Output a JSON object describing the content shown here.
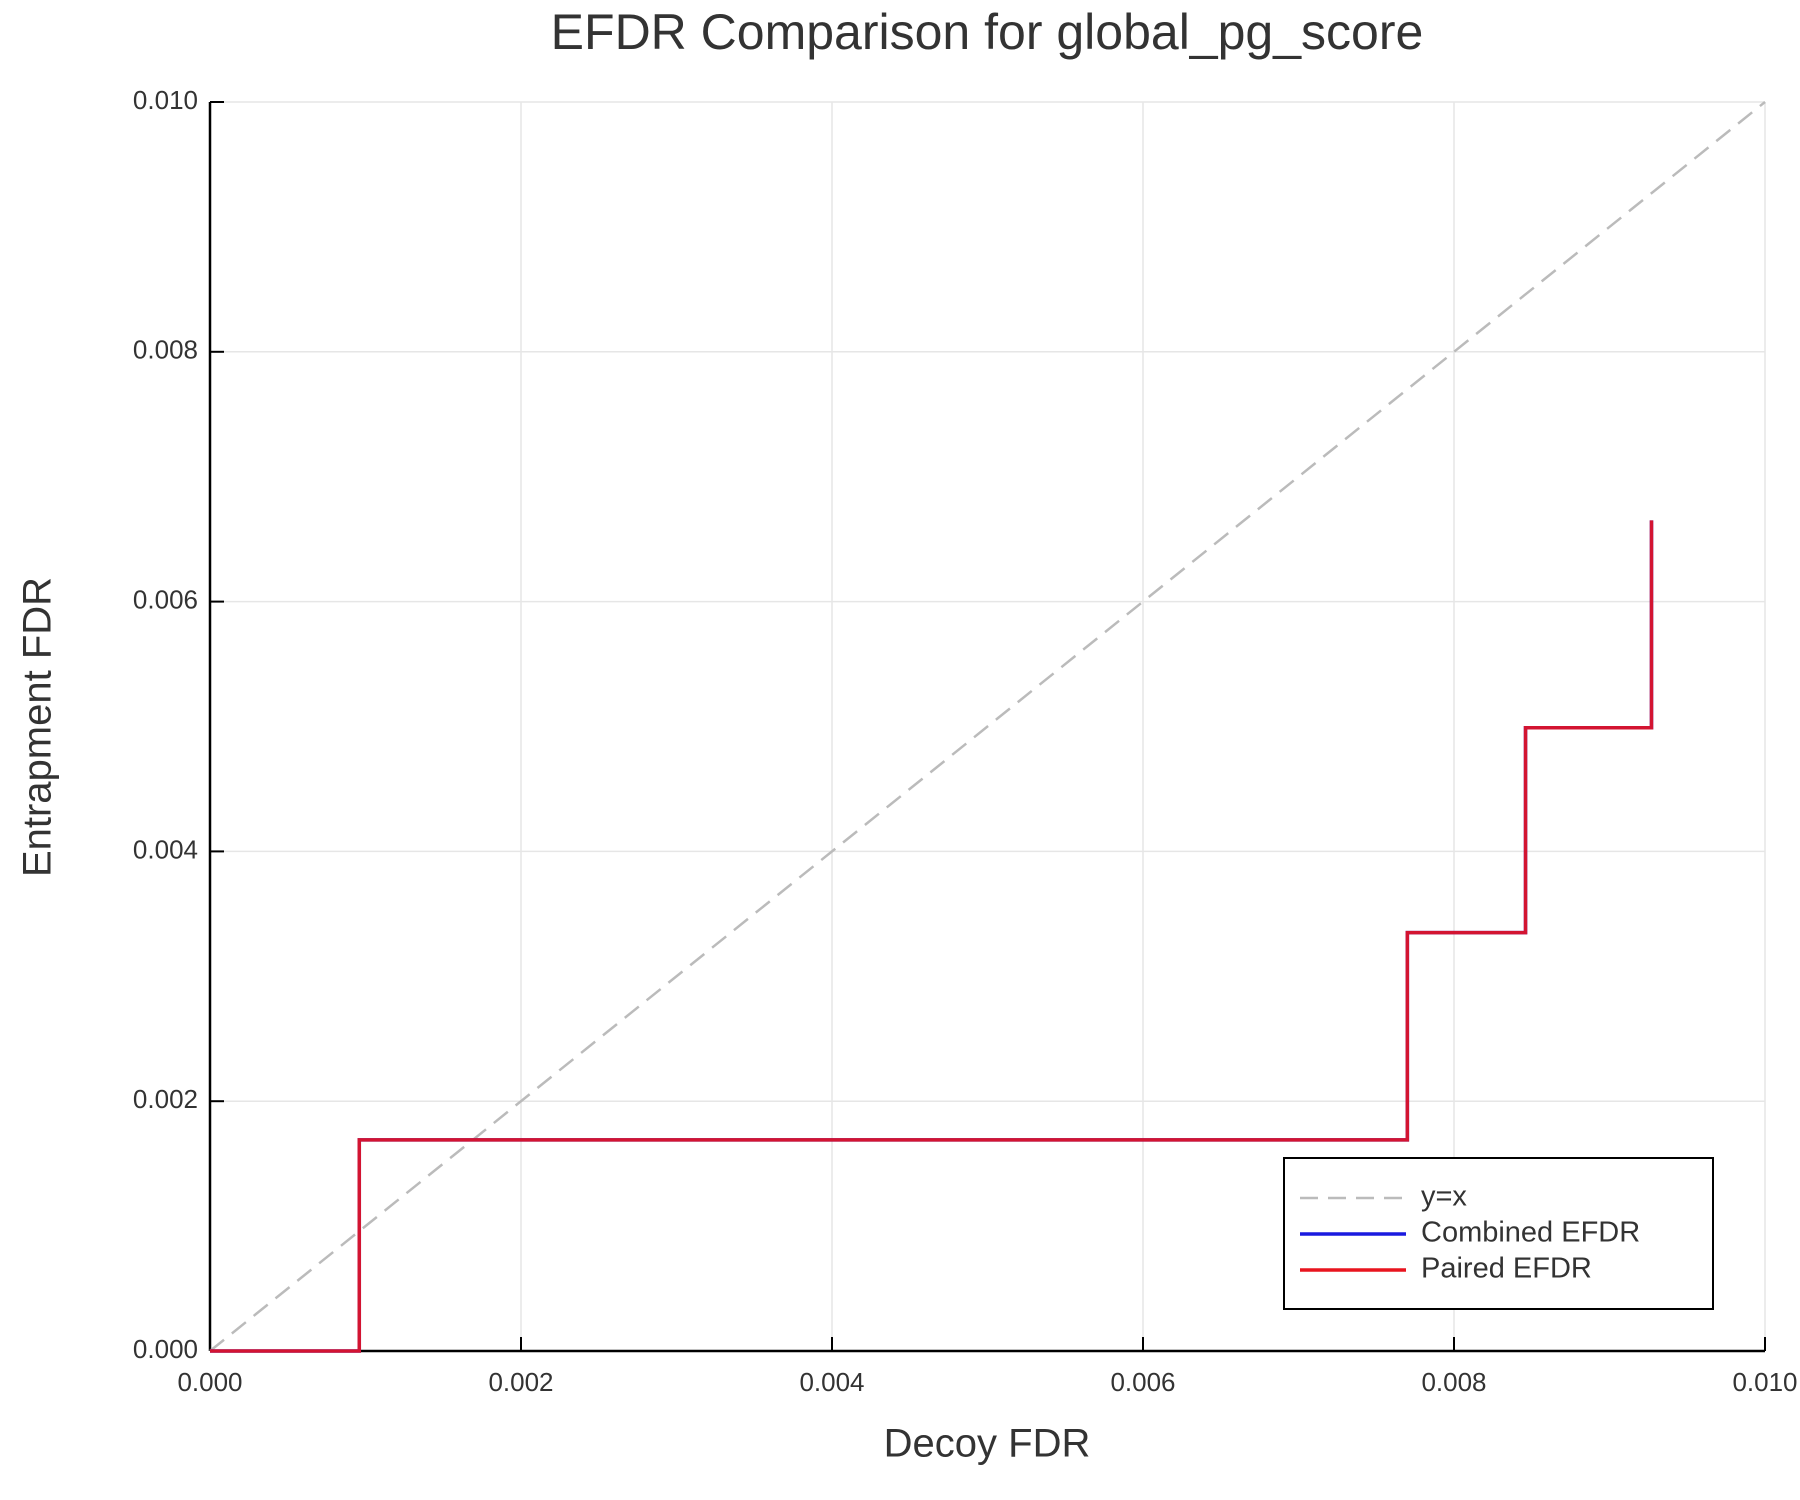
{
  "chart_data": {
    "type": "line",
    "title": "EFDR Comparison for global_pg_score",
    "xlabel": "Decoy FDR",
    "ylabel": "Entrapment FDR",
    "xlim": [
      0,
      0.01
    ],
    "ylim": [
      0,
      0.01
    ],
    "xticks": [
      {
        "value": 0,
        "label": "0.000"
      },
      {
        "value": 0.002,
        "label": "0.002"
      },
      {
        "value": 0.004,
        "label": "0.004"
      },
      {
        "value": 0.006,
        "label": "0.006"
      },
      {
        "value": 0.008,
        "label": "0.008"
      },
      {
        "value": 0.01,
        "label": "0.010"
      }
    ],
    "yticks": [
      {
        "value": 0,
        "label": "0.000"
      },
      {
        "value": 0.002,
        "label": "0.002"
      },
      {
        "value": 0.004,
        "label": "0.004"
      },
      {
        "value": 0.006,
        "label": "0.006"
      },
      {
        "value": 0.008,
        "label": "0.008"
      },
      {
        "value": 0.01,
        "label": "0.010"
      }
    ],
    "grid": true,
    "legend": "lower right",
    "series": [
      {
        "name": "y=x",
        "color": "#bbbbbb",
        "dashed": true,
        "x": [
          0,
          0.01
        ],
        "values": [
          0,
          0.01
        ]
      },
      {
        "name": "Combined EFDR",
        "color": "#1a1adf",
        "x": [
          0,
          0.00096,
          0.00096,
          0.0077,
          0.0077,
          0.00846,
          0.00846,
          0.00927,
          0.00927
        ],
        "values": [
          0,
          0,
          0.00169,
          0.00169,
          0.00335,
          0.00335,
          0.00499,
          0.00499,
          0.00665
        ]
      },
      {
        "name": "Paired EFDR",
        "color": "#e8141e",
        "x": [
          0,
          0.00096,
          0.00096,
          0.0077,
          0.0077,
          0.00846,
          0.00846,
          0.00927,
          0.00927
        ],
        "values": [
          0,
          0,
          0.00169,
          0.00169,
          0.00335,
          0.00335,
          0.00499,
          0.00499,
          0.00665
        ]
      }
    ]
  }
}
